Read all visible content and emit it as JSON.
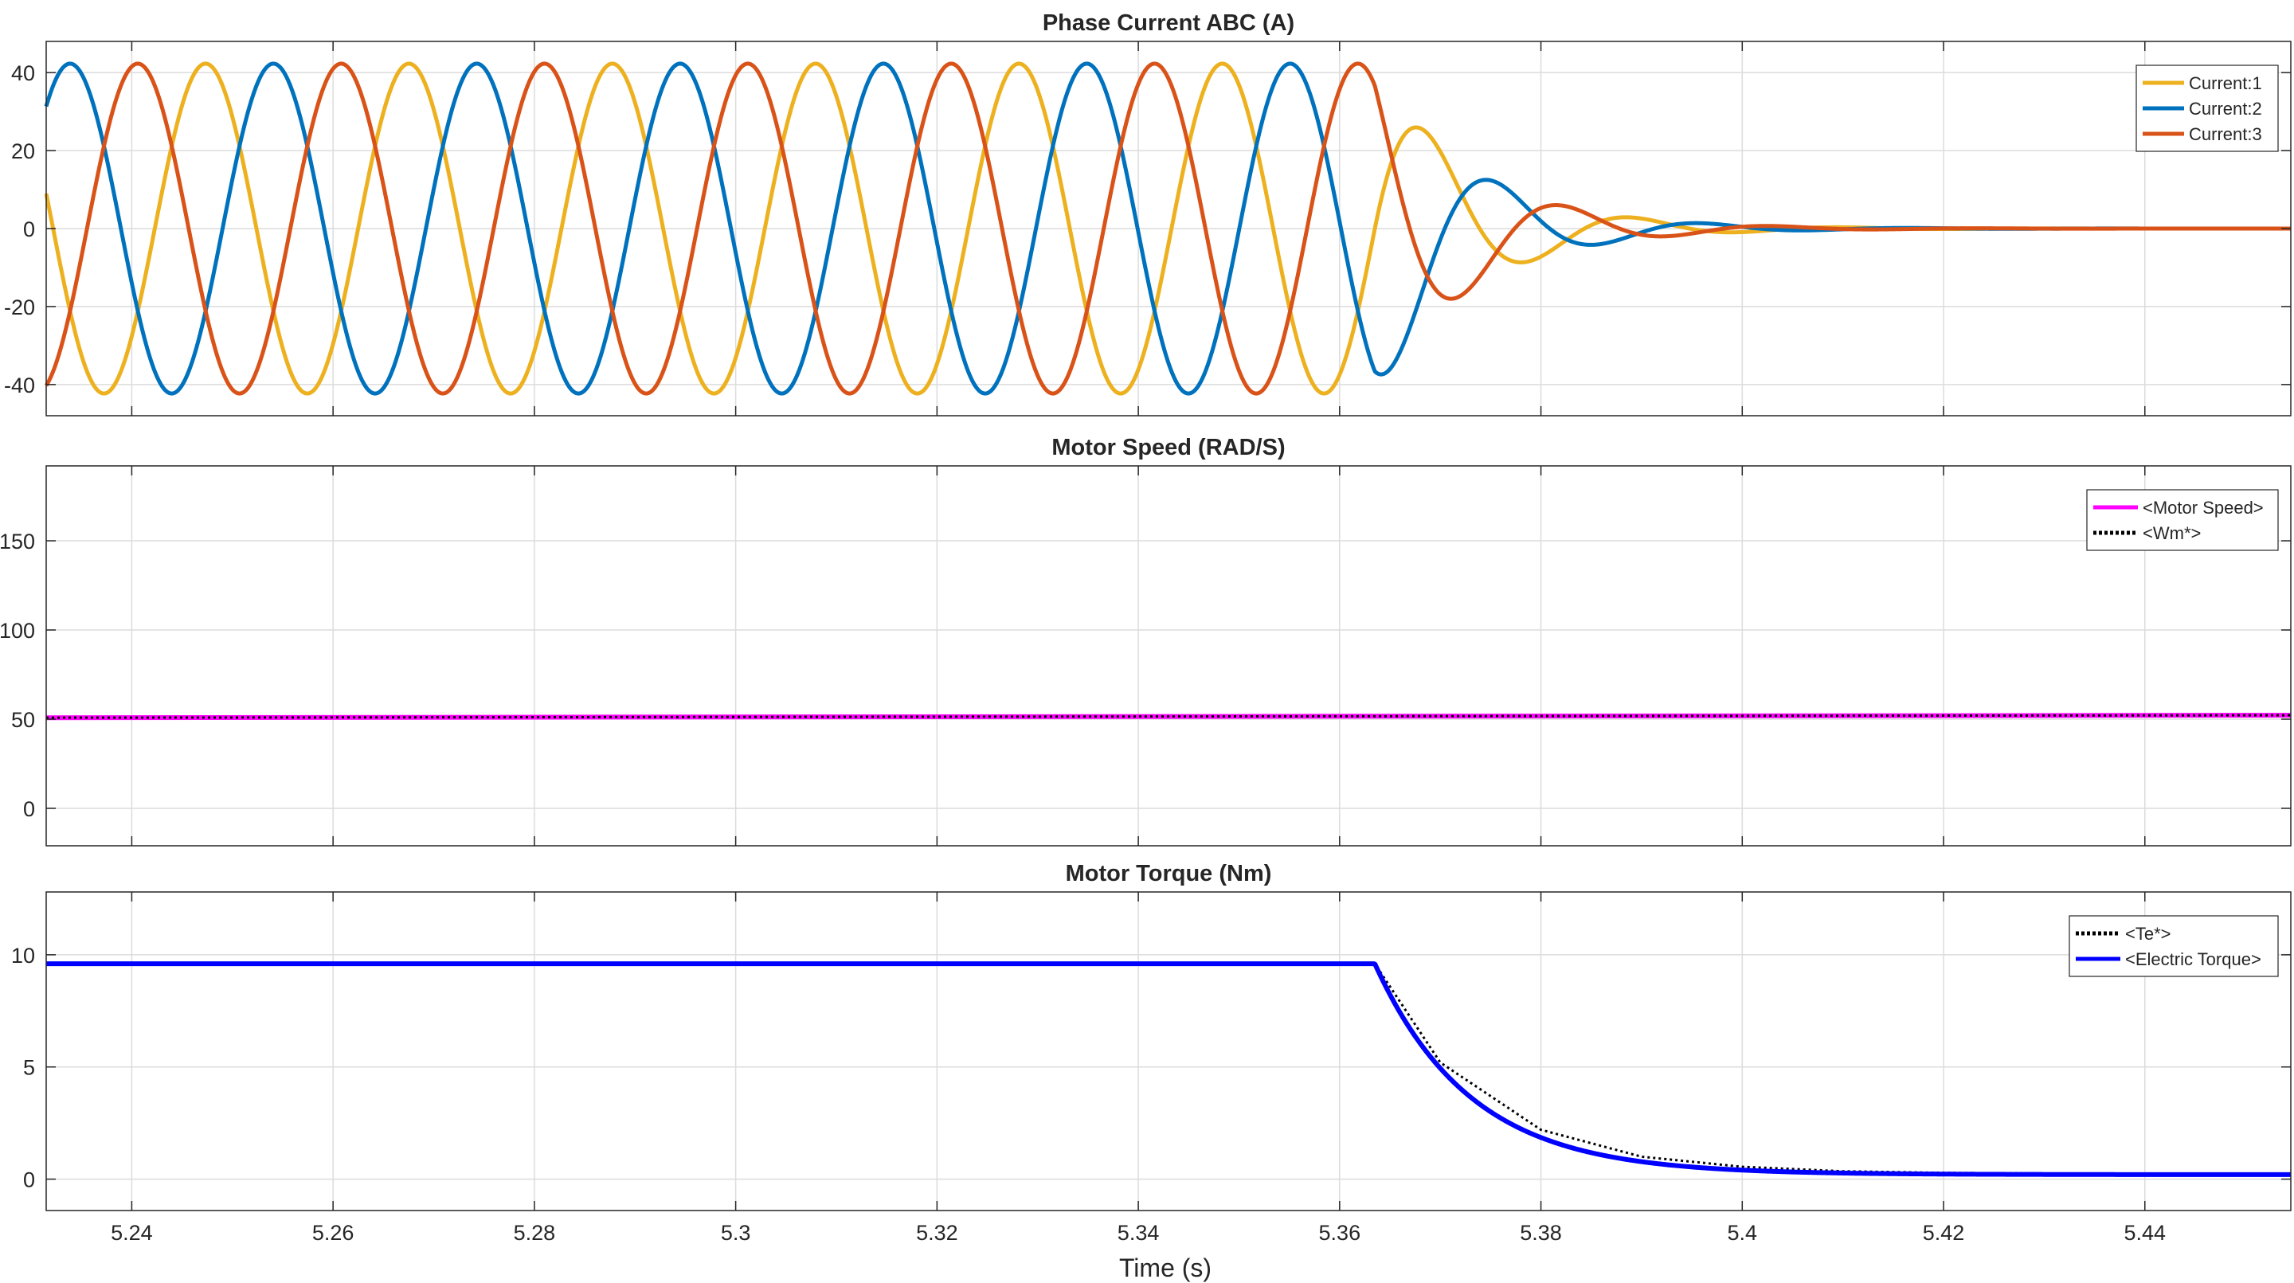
{
  "figure": {
    "xlabel": "Time (s)",
    "x_ticks": [
      5.24,
      5.26,
      5.28,
      5.3,
      5.32,
      5.34,
      5.36,
      5.38,
      5.4,
      5.42,
      5.44
    ],
    "x_tick_labels": [
      "5.24",
      "5.26",
      "5.28",
      "5.3",
      "5.32",
      "5.34",
      "5.36",
      "5.38",
      "5.4",
      "5.42",
      "5.44"
    ]
  },
  "chart_data": [
    {
      "type": "line",
      "title": "Phase Current ABC (A)",
      "xlabel": "",
      "ylabel": "",
      "xlim": [
        5.2315,
        5.4545
      ],
      "ylim": [
        -48,
        48
      ],
      "y_ticks": [
        -40,
        -20,
        0,
        20,
        40
      ],
      "y_tick_labels": [
        "-40",
        "-20",
        "0",
        "20",
        "40"
      ],
      "grid": true,
      "legend_position": "top-right",
      "series": [
        {
          "name": "Current:1",
          "color": "#EDB120",
          "model": {
            "amplitude": 42.3,
            "frequency_hz": 49.5,
            "phase_deg": 0,
            "step_time": 5.3635,
            "decay_time_constant": 0.0095,
            "post_step_frequency_hz": 48
          }
        },
        {
          "name": "Current:2",
          "color": "#0072BD",
          "model": {
            "amplitude": 42.3,
            "frequency_hz": 49.5,
            "phase_deg": -120,
            "step_time": 5.3635,
            "decay_time_constant": 0.0095,
            "post_step_frequency_hz": 48
          }
        },
        {
          "name": "Current:3",
          "color": "#D95319",
          "model": {
            "amplitude": 42.3,
            "frequency_hz": 49.5,
            "phase_deg": 120,
            "step_time": 5.3635,
            "decay_time_constant": 0.0095,
            "post_step_frequency_hz": 48
          }
        }
      ]
    },
    {
      "type": "line",
      "title": "Motor Speed (RAD/S)",
      "xlabel": "",
      "ylabel": "",
      "xlim": [
        5.2315,
        5.4545
      ],
      "ylim": [
        -21,
        192
      ],
      "y_ticks": [
        0,
        50,
        100,
        150
      ],
      "y_tick_labels": [
        "0",
        "50",
        "100",
        "150"
      ],
      "grid": true,
      "legend_position": "top-right",
      "series": [
        {
          "name": "<Motor Speed>",
          "color": "#FF00FF",
          "style": "solid",
          "x": [
            5.2315,
            5.4545
          ],
          "y": [
            50.8,
            52.2
          ]
        },
        {
          "name": "<Wm*>",
          "color": "#000000",
          "style": "dotted",
          "x": [
            5.2315,
            5.4545
          ],
          "y": [
            50.8,
            52.2
          ]
        }
      ]
    },
    {
      "type": "line",
      "title": "Motor Torque (Nm)",
      "xlabel": "",
      "ylabel": "",
      "xlim": [
        5.2315,
        5.4545
      ],
      "ylim": [
        -1.4,
        12.8
      ],
      "y_ticks": [
        0,
        5,
        10
      ],
      "y_tick_labels": [
        "0",
        "5",
        "10"
      ],
      "grid": true,
      "legend_position": "top-right",
      "series": [
        {
          "name": "<Te*>",
          "color": "#000000",
          "style": "dotted",
          "x": [
            5.2315,
            5.3635,
            5.37,
            5.38,
            5.39,
            5.4,
            5.41,
            5.42,
            5.43,
            5.4545
          ],
          "y": [
            9.6,
            9.6,
            5.2,
            2.2,
            1.0,
            0.55,
            0.35,
            0.28,
            0.25,
            0.22
          ]
        },
        {
          "name": "<Electric Torque>",
          "color": "#0000FF",
          "style": "solid",
          "model": {
            "initial_value": 9.6,
            "final_value": 0.2,
            "step_time": 5.3635,
            "time_constant": 0.0095
          }
        }
      ]
    }
  ]
}
